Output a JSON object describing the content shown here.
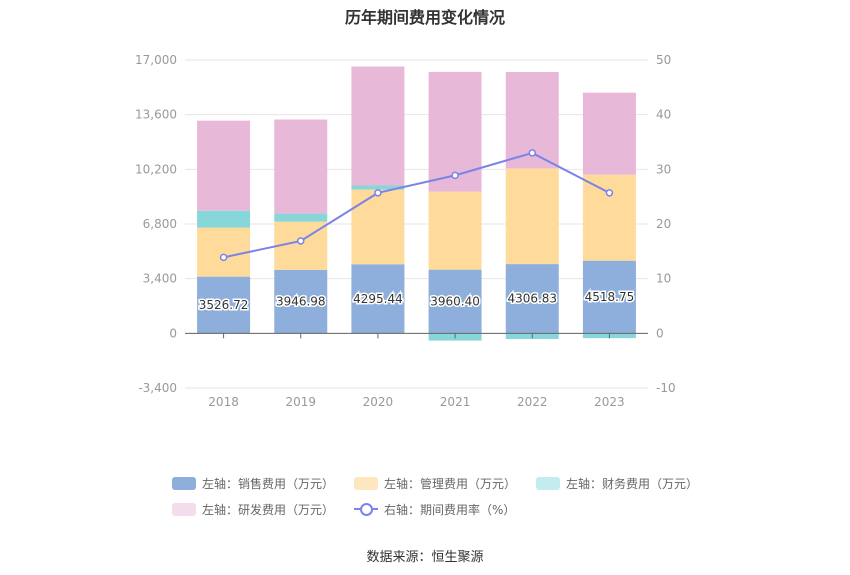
{
  "chart_data": {
    "type": "bar",
    "title": "历年期间费用变化情况",
    "categories": [
      "2018",
      "2019",
      "2020",
      "2021",
      "2022",
      "2023"
    ],
    "series": [
      {
        "name": "左轴：销售费用（万元）",
        "axis": "left",
        "kind": "stacked-bar",
        "color": "#8eaedc",
        "values": [
          3526.72,
          3946.98,
          4295.44,
          3960.4,
          4306.83,
          4518.75
        ]
      },
      {
        "name": "左轴：管理费用（万元）",
        "axis": "left",
        "kind": "stacked-bar",
        "color": "#fedb9a",
        "values": [
          3050,
          3000,
          4650,
          4850,
          5950,
          5350
        ]
      },
      {
        "name": "左轴：财务费用（万元）",
        "axis": "left",
        "kind": "stacked-bar",
        "color": "#87d6da",
        "values": [
          1050,
          500,
          250,
          -450,
          -350,
          -300
        ]
      },
      {
        "name": "左轴：研发费用（万元）",
        "axis": "left",
        "kind": "stacked-bar",
        "color": "#e8b8d8",
        "values": [
          5600,
          5850,
          7400,
          7450,
          6000,
          5100
        ]
      },
      {
        "name": "右轴：期间费用率（%）",
        "axis": "right",
        "kind": "line",
        "color": "#7b83e8",
        "values": [
          13.9,
          16.9,
          25.7,
          28.9,
          33.0,
          25.7
        ]
      }
    ],
    "y_left": {
      "ylim": [
        -3400,
        17000
      ],
      "ticks": [
        "17,000",
        "13,600",
        "10,200",
        "6,800",
        "3,400",
        "0",
        "-3,400"
      ],
      "tick_values": [
        17000,
        13600,
        10200,
        6800,
        3400,
        0,
        -3400
      ]
    },
    "y_right": {
      "ylim": [
        -10,
        50
      ],
      "ticks": [
        "50",
        "40",
        "30",
        "20",
        "10",
        "0",
        "-10"
      ],
      "tick_values": [
        50,
        40,
        30,
        20,
        10,
        0,
        -10
      ]
    },
    "data_labels": [
      "3526.72",
      "3946.98",
      "4295.44",
      "3960.40",
      "4306.83",
      "4518.75"
    ],
    "grid": true,
    "legend_position": "bottom"
  },
  "legend": {
    "row1": [
      "左轴：销售费用（万元）",
      "左轴：管理费用（万元）",
      "左轴：财务费用（万元）"
    ],
    "row2": [
      "左轴：研发费用（万元）",
      "右轴：期间费用率（%）"
    ]
  },
  "colors": {
    "sales": "#8eaedc",
    "admin": "#fedb9a",
    "finance": "#87d6da",
    "rnd": "#e8b8d8",
    "rate": "#7b83e8"
  },
  "source": "数据来源：恒生聚源"
}
